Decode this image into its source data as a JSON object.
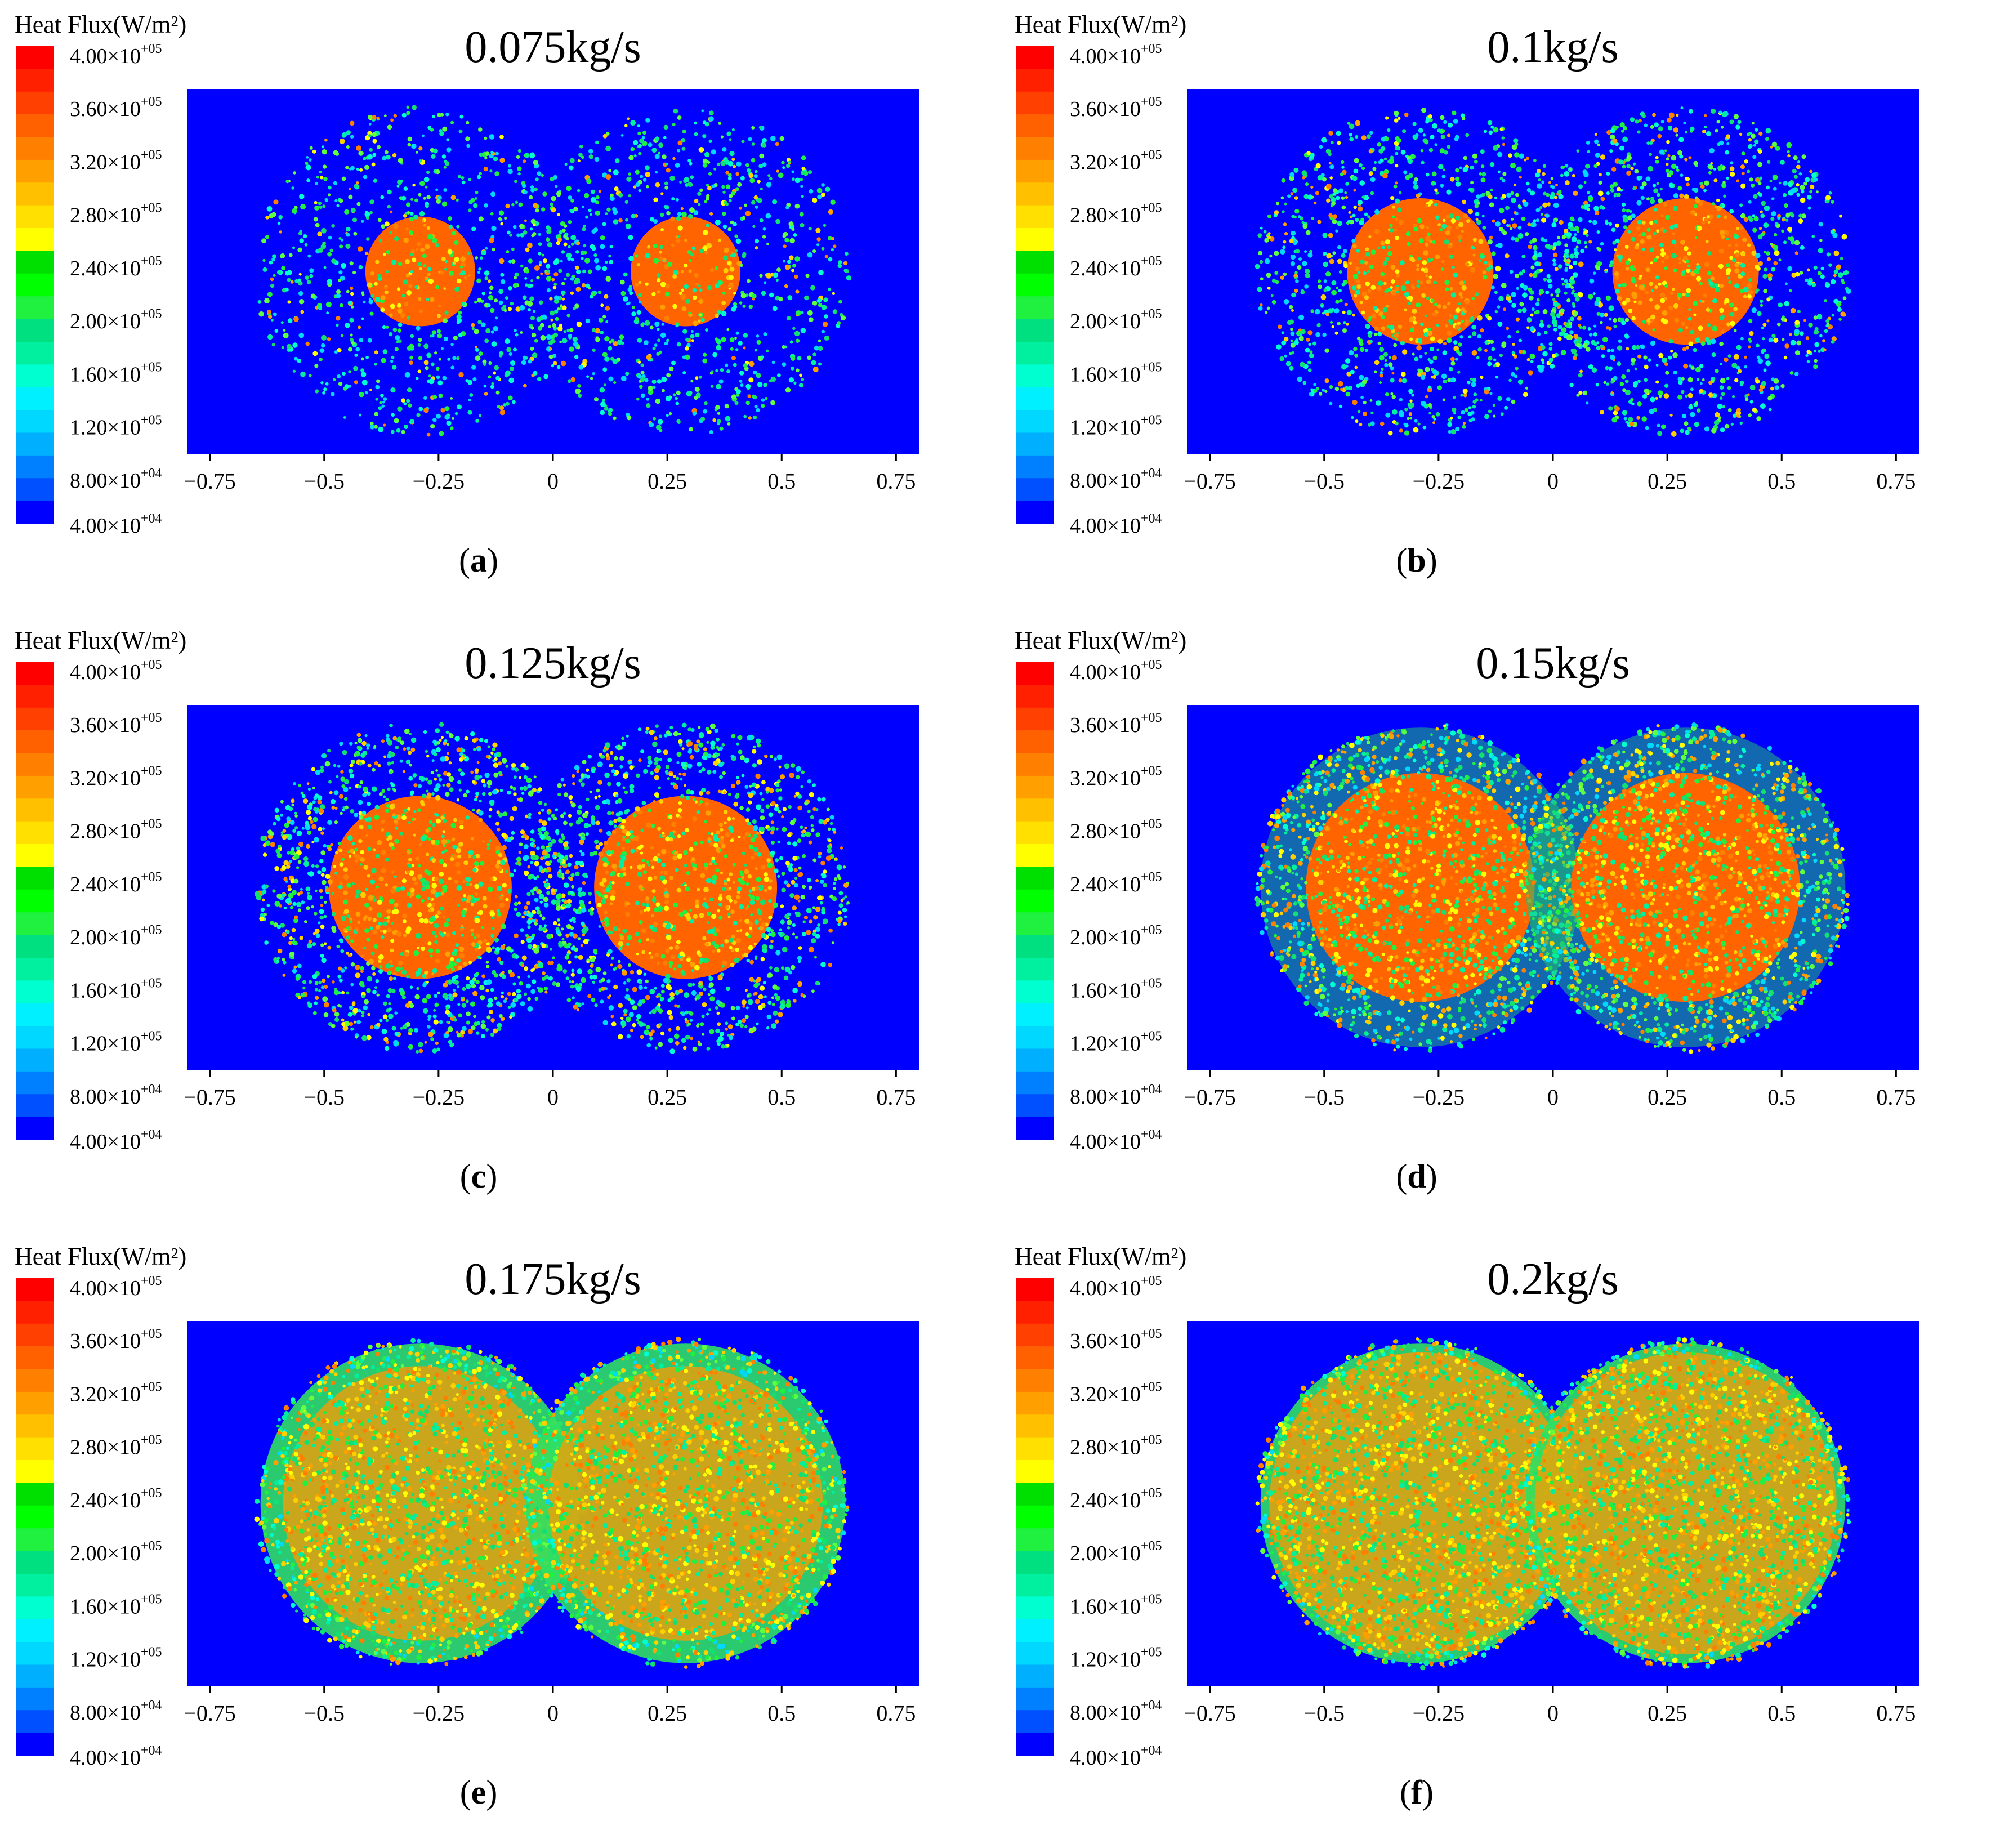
{
  "legend": {
    "title": "Heat Flux(W/m²)",
    "labels": [
      {
        "mant": "4.00×10",
        "exp": "+05"
      },
      {
        "mant": "3.60×10",
        "exp": "+05"
      },
      {
        "mant": "3.20×10",
        "exp": "+05"
      },
      {
        "mant": "2.80×10",
        "exp": "+05"
      },
      {
        "mant": "2.40×10",
        "exp": "+05"
      },
      {
        "mant": "2.00×10",
        "exp": "+05"
      },
      {
        "mant": "1.60×10",
        "exp": "+05"
      },
      {
        "mant": "1.20×10",
        "exp": "+05"
      },
      {
        "mant": "8.00×10",
        "exp": "+04"
      },
      {
        "mant": "4.00×10",
        "exp": "+04"
      }
    ],
    "colors_top_to_bottom": [
      "#ff0000",
      "#ff2000",
      "#ff4000",
      "#ff6000",
      "#ff8000",
      "#ffa000",
      "#ffc000",
      "#ffe000",
      "#ffff00",
      "#00e000",
      "#00ff00",
      "#20f040",
      "#00e080",
      "#00f0a0",
      "#00ffd0",
      "#00f0ff",
      "#00d8ff",
      "#00b0ff",
      "#0080ff",
      "#0050ff",
      "#0000ff"
    ],
    "range": [
      40000,
      400000
    ],
    "unit": "W/m²"
  },
  "xaxis": {
    "ticks": [
      -0.75,
      -0.5,
      -0.25,
      0,
      0.25,
      0.5,
      0.75
    ],
    "tick_labels": [
      "−0.75",
      "−0.5",
      "−0.25",
      "0",
      "0.25",
      "0.5",
      "0.75"
    ]
  },
  "colors": {
    "background_field": "#0000ff",
    "core": "#ff6400",
    "ring_speckle": "#14e070",
    "hot_speckle": "#ffd000"
  },
  "chart_data": [
    {
      "type": "heatmap",
      "letter": "a",
      "title": "0.075kg/s",
      "mass_flow_kg_s": 0.075,
      "xlim": [
        -0.8,
        0.8
      ],
      "grid": false,
      "legend_placement": "left",
      "centers_x": [
        -0.29,
        0.29
      ],
      "outer_radius": 0.36,
      "core_radius": 0.12
    },
    {
      "type": "heatmap",
      "letter": "b",
      "title": "0.1kg/s",
      "mass_flow_kg_s": 0.1,
      "xlim": [
        -0.8,
        0.8
      ],
      "grid": false,
      "legend_placement": "left",
      "centers_x": [
        -0.29,
        0.29
      ],
      "outer_radius": 0.36,
      "core_radius": 0.16
    },
    {
      "type": "heatmap",
      "letter": "c",
      "title": "0.125kg/s",
      "mass_flow_kg_s": 0.125,
      "xlim": [
        -0.8,
        0.8
      ],
      "grid": false,
      "legend_placement": "left",
      "centers_x": [
        -0.29,
        0.29
      ],
      "outer_radius": 0.36,
      "core_radius": 0.2
    },
    {
      "type": "heatmap",
      "letter": "d",
      "title": "0.15kg/s",
      "mass_flow_kg_s": 0.15,
      "xlim": [
        -0.8,
        0.8
      ],
      "grid": false,
      "legend_placement": "left",
      "centers_x": [
        -0.29,
        0.29
      ],
      "outer_radius": 0.36,
      "core_radius": 0.25
    },
    {
      "type": "heatmap",
      "letter": "e",
      "title": "0.175kg/s",
      "mass_flow_kg_s": 0.175,
      "xlim": [
        -0.8,
        0.8
      ],
      "grid": false,
      "legend_placement": "left",
      "centers_x": [
        -0.29,
        0.29
      ],
      "outer_radius": 0.36,
      "core_radius": 0.3
    },
    {
      "type": "heatmap",
      "letter": "f",
      "title": "0.2kg/s",
      "mass_flow_kg_s": 0.2,
      "xlim": [
        -0.8,
        0.8
      ],
      "grid": false,
      "legend_placement": "left",
      "centers_x": [
        -0.29,
        0.29
      ],
      "outer_radius": 0.36,
      "core_radius": 0.33
    }
  ]
}
